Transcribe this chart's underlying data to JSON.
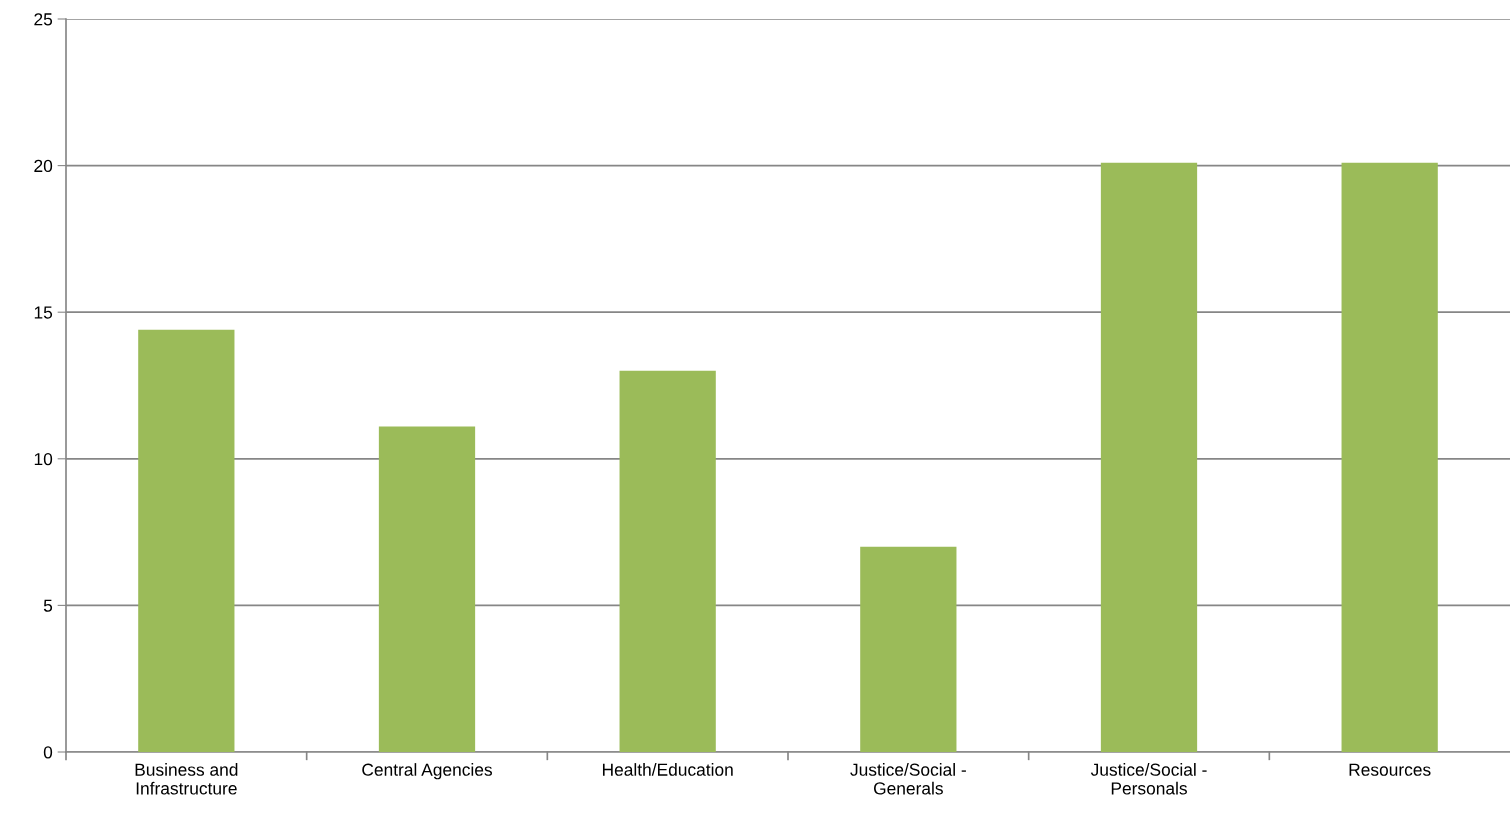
{
  "chart_data": {
    "type": "bar",
    "categories": [
      "Business and\nInfrastructure",
      "Central Agencies",
      "Health/Education",
      "Justice/Social -\nGenerals",
      "Justice/Social -\nPersonals",
      "Resources"
    ],
    "values": [
      14.4,
      11.1,
      13.0,
      7.0,
      20.1,
      20.1
    ],
    "color": "#9bbb59",
    "ylim": [
      0,
      25
    ],
    "yticks": [
      0,
      5,
      10,
      15,
      20,
      25
    ],
    "grid": "y",
    "legend": false
  }
}
